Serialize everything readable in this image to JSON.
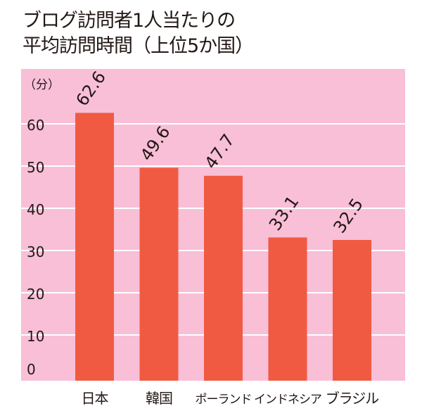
{
  "chart_data": {
    "type": "bar",
    "title_lines": [
      "ブログ訪問者1人当たりの",
      "平均訪問時間（上位5か国）"
    ],
    "ylabel": "（分）",
    "categories": [
      "日本",
      "韓国",
      "ポーランド",
      "インドネシア",
      "ブラジル"
    ],
    "values": [
      62.6,
      49.6,
      47.7,
      33.1,
      32.5
    ],
    "value_labels": [
      "62.6",
      "49.6",
      "47.7",
      "33.1",
      "32.5"
    ],
    "yticks": [
      "0",
      "10",
      "20",
      "30",
      "40",
      "50",
      "60"
    ],
    "ylim": [
      0,
      70
    ],
    "grid": true,
    "colors": {
      "bar": "#f15a42",
      "background": "#f8bfd7",
      "grid": "#ffffff",
      "text": "#231815"
    }
  }
}
